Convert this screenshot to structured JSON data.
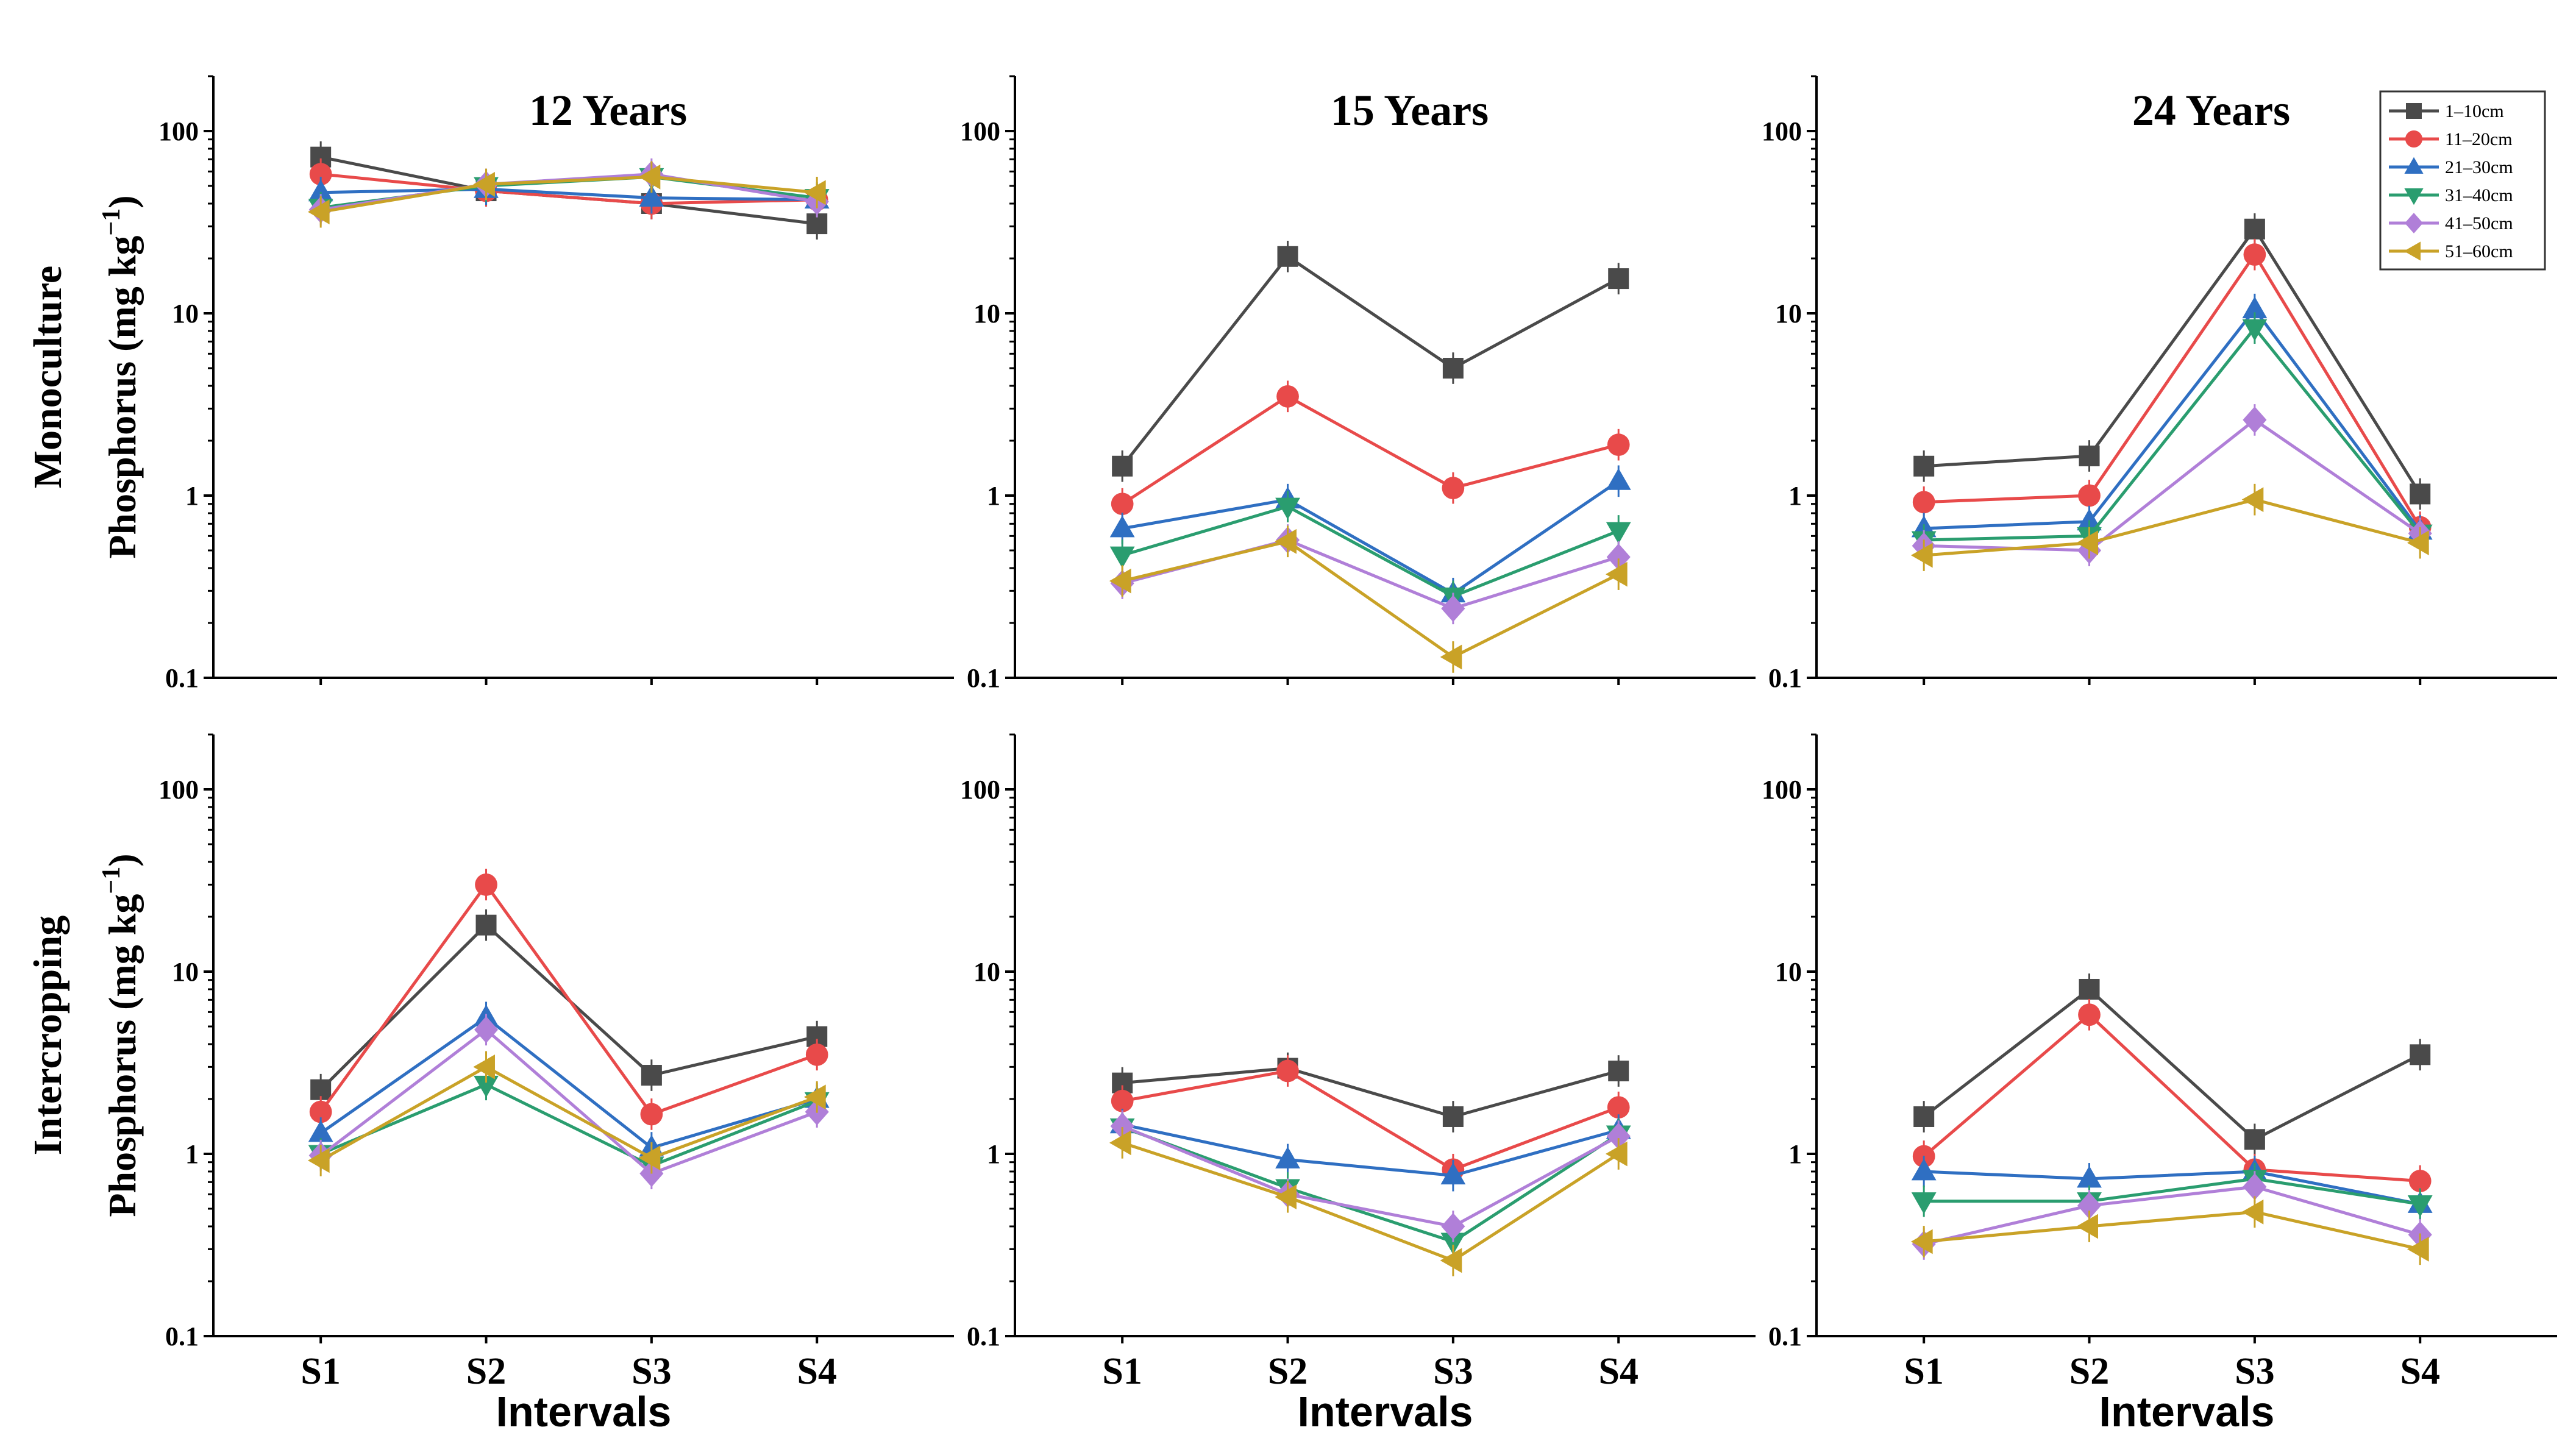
{
  "chart_data": {
    "type": "line",
    "yscale": "log",
    "ylim": [
      0.1,
      200
    ],
    "yticks": [
      {
        "value": 0.1,
        "label": "0.1"
      },
      {
        "value": 1,
        "label": "1"
      },
      {
        "value": 10,
        "label": "10"
      },
      {
        "value": 100,
        "label": "100"
      }
    ],
    "categories": [
      "S1",
      "S2",
      "S3",
      "S4"
    ],
    "xlabel": "Intervals",
    "ylabel_prefix": "Phosphorus (mg kg",
    "ylabel_sup": "−1",
    "ylabel_suffix": ")",
    "col_titles": [
      "12 Years",
      "15 Years",
      "24 Years"
    ],
    "row_labels": [
      "Monoculture",
      "Intercropping"
    ],
    "legend": [
      {
        "name": "1–10cm",
        "color": "#4a4a4a",
        "marker": "square"
      },
      {
        "name": "11–20cm",
        "color": "#e84a4a",
        "marker": "circle"
      },
      {
        "name": "21–30cm",
        "color": "#2f6fc2",
        "marker": "triangle-up"
      },
      {
        "name": "31–40cm",
        "color": "#2a9d6f",
        "marker": "triangle-down"
      },
      {
        "name": "41–50cm",
        "color": "#b07fd8",
        "marker": "diamond"
      },
      {
        "name": "51–60cm",
        "color": "#c9a227",
        "marker": "triangle-left"
      }
    ],
    "panels": [
      {
        "row": 0,
        "col": 0,
        "series": [
          {
            "values": [
              72,
              47,
              40,
              31
            ]
          },
          {
            "values": [
              58,
              47,
              40,
              42
            ]
          },
          {
            "values": [
              46,
              48,
              43,
              42
            ]
          },
          {
            "values": [
              38,
              50,
              56,
              43
            ]
          },
          {
            "values": [
              37,
              51,
              58,
              41
            ]
          },
          {
            "values": [
              36,
              51,
              56,
              46
            ]
          }
        ]
      },
      {
        "row": 0,
        "col": 1,
        "series": [
          {
            "values": [
              1.45,
              20.5,
              5.0,
              15.5
            ]
          },
          {
            "values": [
              0.9,
              3.5,
              1.1,
              1.9
            ]
          },
          {
            "values": [
              0.66,
              0.95,
              0.29,
              1.2
            ]
          },
          {
            "values": [
              0.47,
              0.87,
              0.28,
              0.64
            ]
          },
          {
            "values": [
              0.33,
              0.57,
              0.24,
              0.46
            ]
          },
          {
            "values": [
              0.34,
              0.56,
              0.13,
              0.37
            ]
          }
        ]
      },
      {
        "row": 0,
        "col": 2,
        "series": [
          {
            "values": [
              1.45,
              1.65,
              29,
              1.02
            ]
          },
          {
            "values": [
              0.92,
              1.0,
              21,
              0.67
            ]
          },
          {
            "values": [
              0.66,
              0.72,
              10.5,
              0.64
            ]
          },
          {
            "values": [
              0.57,
              0.6,
              8.3,
              0.62
            ]
          },
          {
            "values": [
              0.53,
              0.5,
              2.6,
              0.62
            ]
          },
          {
            "values": [
              0.47,
              0.55,
              0.95,
              0.55
            ]
          }
        ]
      },
      {
        "row": 1,
        "col": 0,
        "series": [
          {
            "values": [
              2.25,
              18,
              2.7,
              4.4
            ]
          },
          {
            "values": [
              1.7,
              30,
              1.65,
              3.5
            ]
          },
          {
            "values": [
              1.3,
              5.6,
              1.08,
              2.0
            ]
          },
          {
            "values": [
              1.0,
              2.4,
              0.86,
              1.95
            ]
          },
          {
            "values": [
              0.98,
              4.8,
              0.78,
              1.7
            ]
          },
          {
            "values": [
              0.92,
              3.0,
              0.95,
              2.05
            ]
          }
        ]
      },
      {
        "row": 1,
        "col": 1,
        "series": [
          {
            "values": [
              2.45,
              2.95,
              1.6,
              2.85
            ]
          },
          {
            "values": [
              1.95,
              2.85,
              0.82,
              1.8
            ]
          },
          {
            "values": [
              1.45,
              0.93,
              0.76,
              1.35
            ]
          },
          {
            "values": [
              1.4,
              0.65,
              0.33,
              1.28
            ]
          },
          {
            "values": [
              1.42,
              0.6,
              0.4,
              1.25
            ]
          },
          {
            "values": [
              1.15,
              0.58,
              0.26,
              1.0
            ]
          }
        ]
      },
      {
        "row": 1,
        "col": 2,
        "series": [
          {
            "values": [
              1.6,
              8.0,
              1.2,
              3.5
            ]
          },
          {
            "values": [
              0.97,
              5.8,
              0.82,
              0.71
            ]
          },
          {
            "values": [
              0.8,
              0.73,
              0.8,
              0.53
            ]
          },
          {
            "values": [
              0.55,
              0.55,
              0.73,
              0.53
            ]
          },
          {
            "values": [
              0.32,
              0.52,
              0.66,
              0.36
            ]
          },
          {
            "values": [
              0.33,
              0.4,
              0.48,
              0.3
            ]
          }
        ]
      }
    ]
  }
}
